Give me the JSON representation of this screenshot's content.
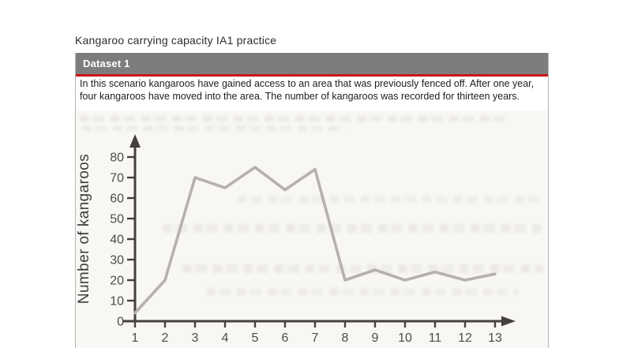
{
  "page_title": "Kangaroo carrying capacity IA1 practice",
  "panel": {
    "header_label": "Dataset 1",
    "intro_lines": [
      "In this scenario kangaroos have gained access to an area that was previously fenced off. After one year,",
      "four kangaroos have moved into the area. The number of kangaroos was recorded for thirteen years."
    ]
  },
  "colors": {
    "header_bg": "#7d7d7d",
    "rule_red": "#cc1414",
    "axis": "#46403b",
    "tick_label": "#4c4c4c",
    "axis_label": "#3d3d3d",
    "chart_line": "#b5b2ae"
  },
  "chart_data": {
    "type": "line",
    "x": [
      1,
      2,
      3,
      4,
      5,
      6,
      7,
      8,
      9,
      10,
      11,
      12,
      13
    ],
    "values": [
      4,
      20,
      70,
      65,
      75,
      64,
      74,
      20,
      25,
      20,
      24,
      20,
      23
    ],
    "title": "",
    "xlabel": "",
    "ylabel": "Number of kangaroos",
    "ylim": [
      0,
      80
    ],
    "yticks": [
      0,
      10,
      20,
      30,
      40,
      50,
      60,
      70,
      80
    ],
    "grid": false,
    "legend": false
  }
}
